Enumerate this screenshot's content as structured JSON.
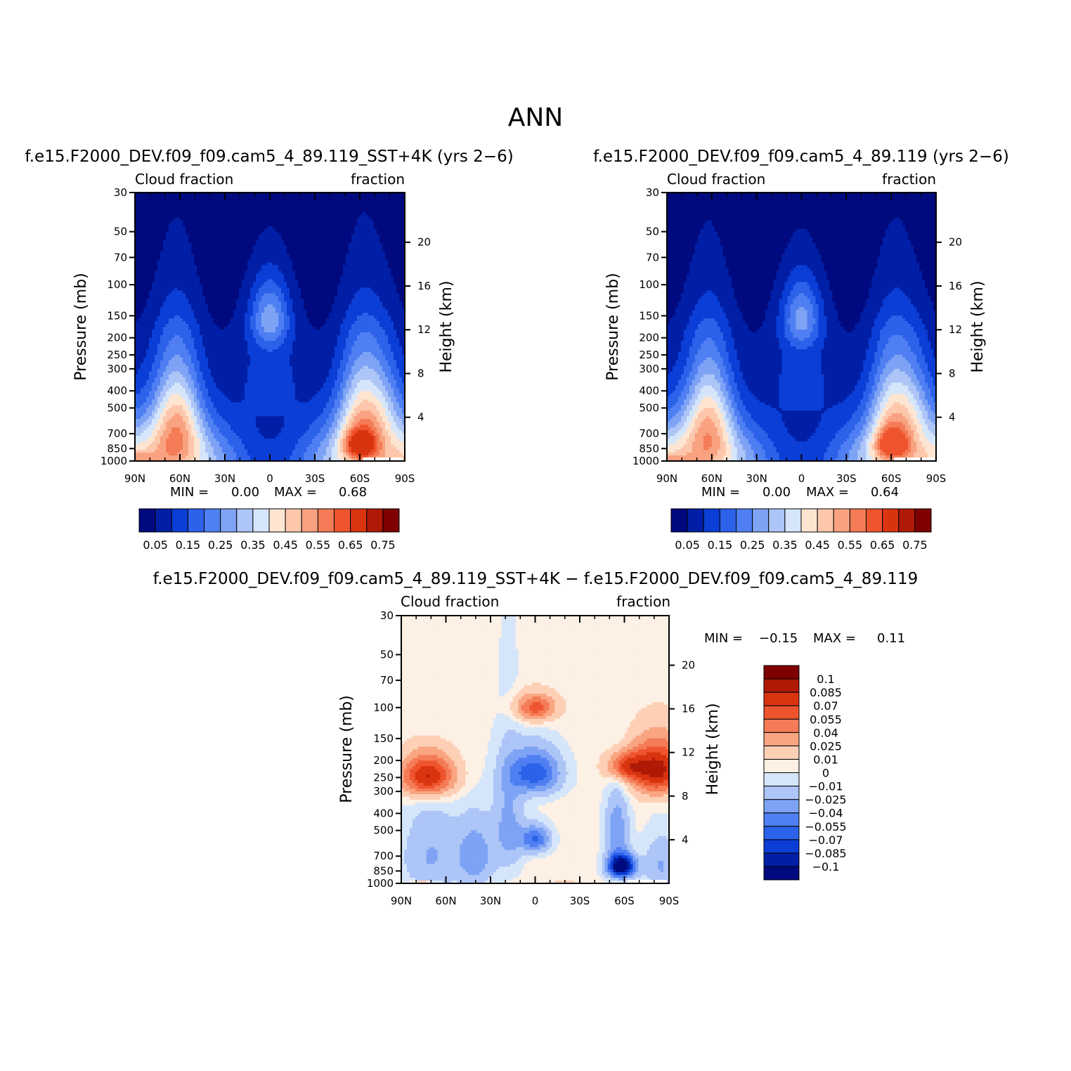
{
  "figure_title": "ANN",
  "colors": {
    "seq_palette": [
      "#000a7e",
      "#001fa6",
      "#0b3ed6",
      "#2c62ea",
      "#4f7ff2",
      "#7ea3f5",
      "#adc5f7",
      "#d6e6fa",
      "#fde5d2",
      "#fcc7ab",
      "#f9a281",
      "#f47c57",
      "#ee552f",
      "#d93410",
      "#af1a07",
      "#7f0000"
    ],
    "diff_palette": [
      "#000a7e",
      "#001fa6",
      "#0b3ed6",
      "#2c62ea",
      "#4f7ff2",
      "#7ea3f5",
      "#adc5f7",
      "#d6e6fa",
      "#fdf0e4",
      "#fdd0b6",
      "#f9a582",
      "#f47c57",
      "#ee552f",
      "#d93410",
      "#af1a07",
      "#7f0000"
    ]
  },
  "chart_data": [
    {
      "type": "heatmap",
      "id": "sst4k",
      "title": "f.e15.F2000_DEV.f09_f09.cam5_4_89.119_SST+4K (yrs 2−6)",
      "left_subtitle": "Cloud fraction",
      "right_subtitle": "fraction",
      "xlabel": "",
      "ylabel": "Pressure (mb)",
      "ylabel_right": "Height (km)",
      "x_tick_labels": [
        "90N",
        "60N",
        "30N",
        "0",
        "30S",
        "60S",
        "90S"
      ],
      "x_tick_values": [
        90,
        60,
        30,
        0,
        -30,
        -60,
        -90
      ],
      "xlim": [
        90,
        -90
      ],
      "y_tick_labels": [
        "30",
        "50",
        "70",
        "100",
        "150",
        "200",
        "250",
        "300",
        "400",
        "500",
        "700",
        "850",
        "1000"
      ],
      "y_tick_values": [
        30,
        50,
        70,
        100,
        150,
        200,
        250,
        300,
        400,
        500,
        700,
        850,
        1000
      ],
      "ylim": [
        30,
        1000
      ],
      "y_scale": "log",
      "height_tick_labels": [
        "20",
        "16",
        "12",
        "8",
        "4"
      ],
      "height_tick_values": [
        20,
        16,
        12,
        8,
        4
      ],
      "min_label": "MIN =",
      "min_value": "0.00",
      "max_label": "MAX =",
      "max_value": "0.68",
      "levels": [
        0.05,
        0.1,
        0.15,
        0.2,
        0.25,
        0.3,
        0.35,
        0.4,
        0.45,
        0.5,
        0.55,
        0.6,
        0.65,
        0.7,
        0.75
      ],
      "colorbar_labels": [
        "0.05",
        "0.15",
        "0.25",
        "0.35",
        "0.45",
        "0.55",
        "0.65",
        "0.75"
      ],
      "colorbar_orientation": "horizontal",
      "field_max": 0.68
    },
    {
      "type": "heatmap",
      "id": "ctrl",
      "title": "f.e15.F2000_DEV.f09_f09.cam5_4_89.119 (yrs 2−6)",
      "left_subtitle": "Cloud fraction",
      "right_subtitle": "fraction",
      "xlabel": "",
      "ylabel": "Pressure (mb)",
      "ylabel_right": "Height (km)",
      "x_tick_labels": [
        "90N",
        "60N",
        "30N",
        "0",
        "30S",
        "60S",
        "90S"
      ],
      "x_tick_values": [
        90,
        60,
        30,
        0,
        -30,
        -60,
        -90
      ],
      "xlim": [
        90,
        -90
      ],
      "y_tick_labels": [
        "30",
        "50",
        "70",
        "100",
        "150",
        "200",
        "250",
        "300",
        "400",
        "500",
        "700",
        "850",
        "1000"
      ],
      "y_tick_values": [
        30,
        50,
        70,
        100,
        150,
        200,
        250,
        300,
        400,
        500,
        700,
        850,
        1000
      ],
      "ylim": [
        30,
        1000
      ],
      "y_scale": "log",
      "height_tick_labels": [
        "20",
        "16",
        "12",
        "8",
        "4"
      ],
      "height_tick_values": [
        20,
        16,
        12,
        8,
        4
      ],
      "min_label": "MIN =",
      "min_value": "0.00",
      "max_label": "MAX =",
      "max_value": "0.64",
      "levels": [
        0.05,
        0.1,
        0.15,
        0.2,
        0.25,
        0.3,
        0.35,
        0.4,
        0.45,
        0.5,
        0.55,
        0.6,
        0.65,
        0.7,
        0.75
      ],
      "colorbar_labels": [
        "0.05",
        "0.15",
        "0.25",
        "0.35",
        "0.45",
        "0.55",
        "0.65",
        "0.75"
      ],
      "colorbar_orientation": "horizontal",
      "field_max": 0.64
    },
    {
      "type": "heatmap",
      "id": "diff",
      "title": "f.e15.F2000_DEV.f09_f09.cam5_4_89.119_SST+4K − f.e15.F2000_DEV.f09_f09.cam5_4_89.119",
      "left_subtitle": "Cloud fraction",
      "right_subtitle": "fraction",
      "xlabel": "",
      "ylabel": "Pressure (mb)",
      "ylabel_right": "Height (km)",
      "x_tick_labels": [
        "90N",
        "60N",
        "30N",
        "0",
        "30S",
        "60S",
        "90S"
      ],
      "x_tick_values": [
        90,
        60,
        30,
        0,
        -30,
        -60,
        -90
      ],
      "xlim": [
        90,
        -90
      ],
      "y_tick_labels": [
        "30",
        "50",
        "70",
        "100",
        "150",
        "200",
        "250",
        "300",
        "400",
        "500",
        "700",
        "850",
        "1000"
      ],
      "y_tick_values": [
        30,
        50,
        70,
        100,
        150,
        200,
        250,
        300,
        400,
        500,
        700,
        850,
        1000
      ],
      "ylim": [
        30,
        1000
      ],
      "y_scale": "log",
      "height_tick_labels": [
        "20",
        "16",
        "12",
        "8",
        "4"
      ],
      "height_tick_values": [
        20,
        16,
        12,
        8,
        4
      ],
      "min_label": "MIN =",
      "min_value": "−0.15",
      "max_label": "MAX =",
      "max_value": "0.11",
      "levels": [
        -0.1,
        -0.085,
        -0.07,
        -0.055,
        -0.04,
        -0.025,
        -0.01,
        0,
        0.01,
        0.025,
        0.04,
        0.055,
        0.07,
        0.085,
        0.1
      ],
      "colorbar_labels": [
        "0.1",
        "0.085",
        "0.07",
        "0.055",
        "0.04",
        "0.025",
        "0.01",
        "0",
        "−0.01",
        "−0.025",
        "−0.04",
        "−0.055",
        "−0.07",
        "−0.085",
        "−0.1"
      ],
      "colorbar_orientation": "vertical"
    }
  ]
}
